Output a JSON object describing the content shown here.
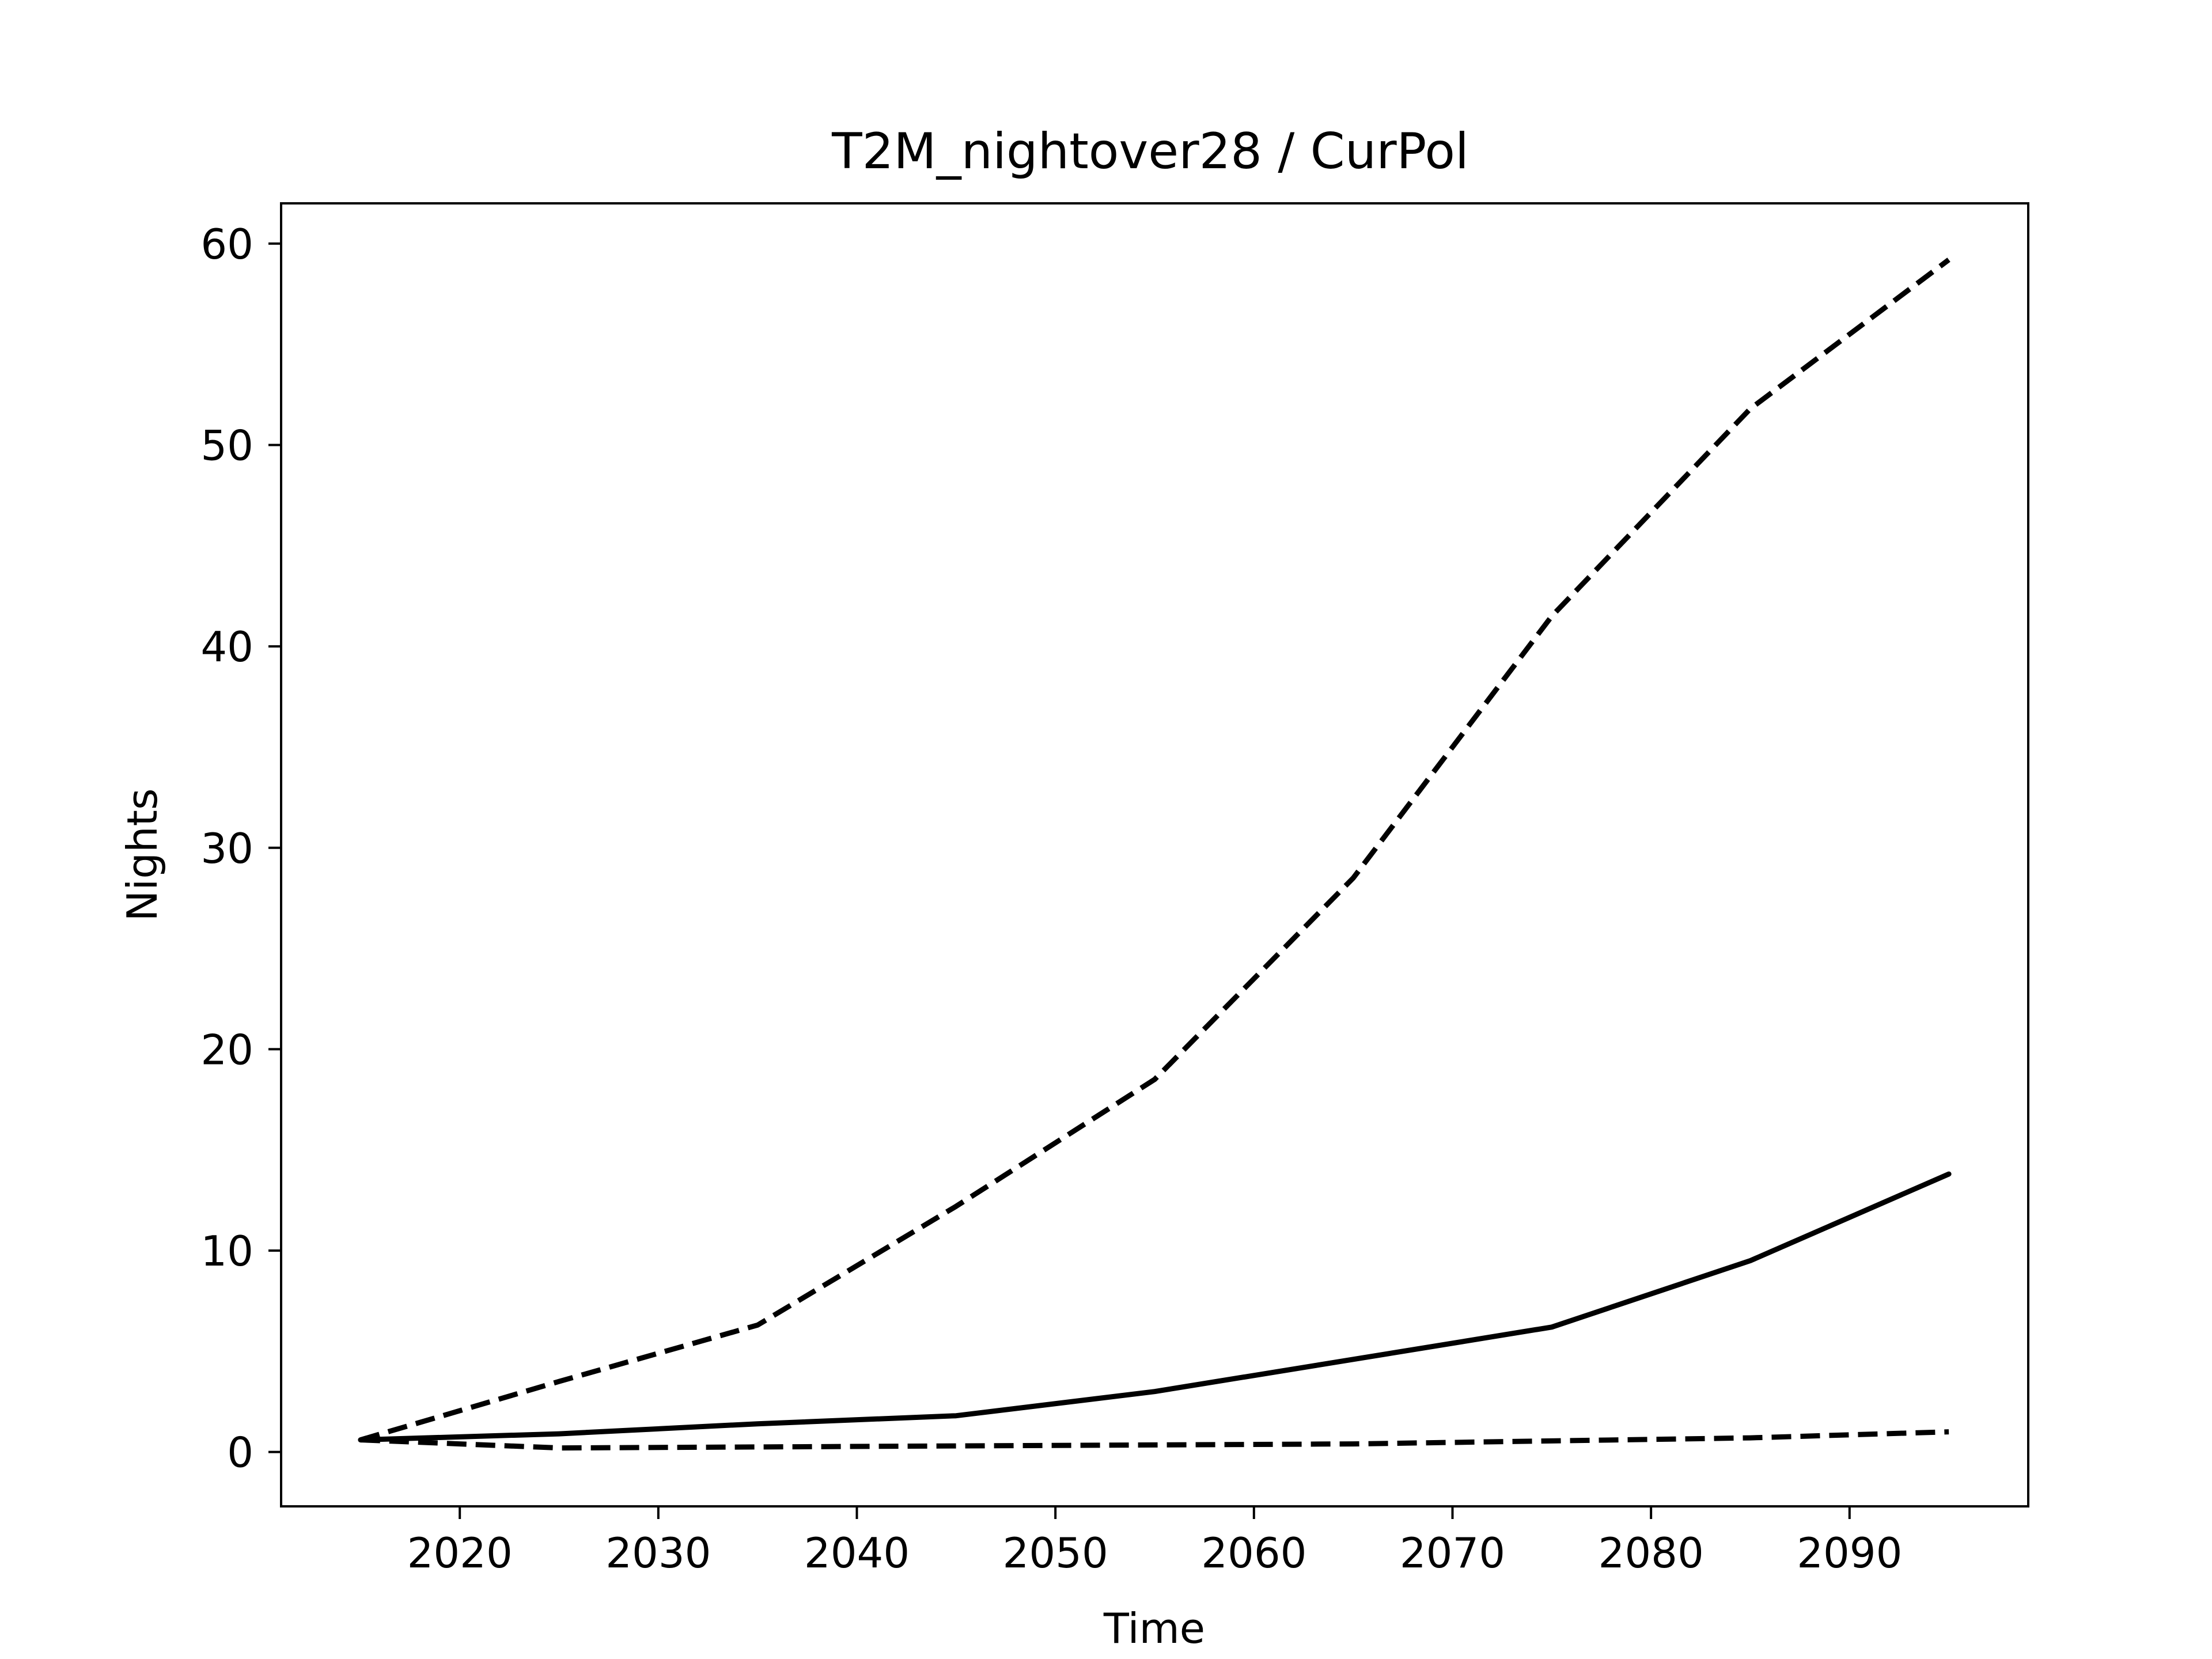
{
  "chart_data": {
    "type": "line",
    "title": "T2M_nightover28 / CurPol",
    "xlabel": "Time",
    "ylabel": "Nights",
    "xlim": [
      2011,
      2099
    ],
    "ylim": [
      -2.7,
      62.0
    ],
    "xticks": [
      2020,
      2030,
      2040,
      2050,
      2060,
      2070,
      2080,
      2090
    ],
    "yticks": [
      0,
      10,
      20,
      30,
      40,
      50,
      60
    ],
    "grid": false,
    "legend": "none",
    "x": [
      2015,
      2025,
      2035,
      2045,
      2055,
      2065,
      2075,
      2085,
      2095
    ],
    "series": [
      {
        "style": "dashed",
        "color": "#000000",
        "values": [
          0.6,
          3.5,
          6.3,
          12.2,
          18.5,
          28.5,
          41.5,
          51.8,
          59.2
        ]
      },
      {
        "style": "solid",
        "color": "#000000",
        "values": [
          0.6,
          0.9,
          1.4,
          1.8,
          3.0,
          4.6,
          6.2,
          9.5,
          13.8
        ]
      },
      {
        "style": "dashed",
        "color": "#000000",
        "values": [
          0.6,
          0.2,
          0.25,
          0.3,
          0.35,
          0.4,
          0.55,
          0.7,
          1.0
        ]
      }
    ]
  }
}
